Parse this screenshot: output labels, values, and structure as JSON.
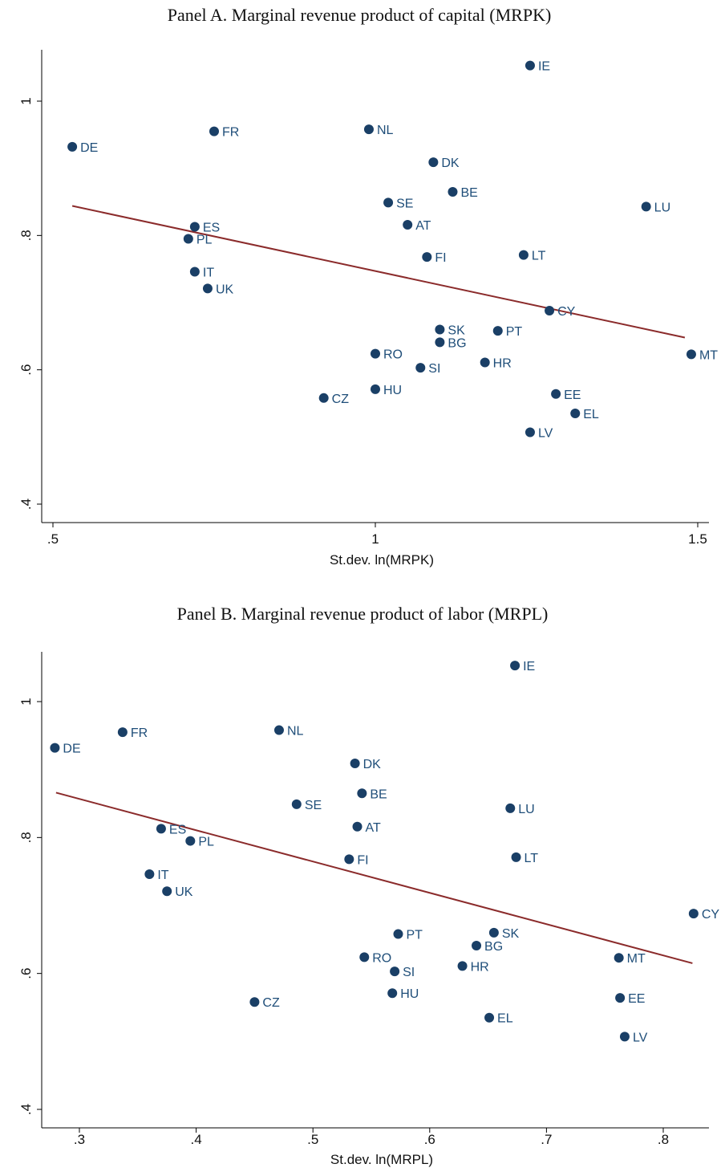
{
  "chart_data": [
    {
      "type": "scatter",
      "title": "Panel A. Marginal revenue product of capital (MRPK)",
      "xlabel": "St.dev. ln(MRPK)",
      "ylabel": "",
      "xlim": [
        0.5,
        1.5
      ],
      "ylim": [
        0.4,
        1.05
      ],
      "xticks": [
        0.5,
        1,
        1.5
      ],
      "xtick_labels": [
        ".5",
        "1",
        "1.5"
      ],
      "yticks": [
        0.4,
        0.6,
        0.8,
        1
      ],
      "ytick_labels": [
        ".4",
        ".6",
        ".8",
        "1"
      ],
      "grid": false,
      "fit_line": {
        "x": [
          0.53,
          1.48
        ],
        "y": [
          0.844,
          0.648
        ]
      },
      "points": [
        {
          "label": "IE",
          "x": 1.24,
          "y": 1.053
        },
        {
          "label": "DE",
          "x": 0.53,
          "y": 0.932
        },
        {
          "label": "FR",
          "x": 0.75,
          "y": 0.955
        },
        {
          "label": "NL",
          "x": 0.99,
          "y": 0.958
        },
        {
          "label": "DK",
          "x": 1.09,
          "y": 0.909
        },
        {
          "label": "BE",
          "x": 1.12,
          "y": 0.865
        },
        {
          "label": "SE",
          "x": 1.02,
          "y": 0.849
        },
        {
          "label": "LU",
          "x": 1.42,
          "y": 0.843
        },
        {
          "label": "ES",
          "x": 0.72,
          "y": 0.813
        },
        {
          "label": "AT",
          "x": 1.05,
          "y": 0.816
        },
        {
          "label": "PL",
          "x": 0.71,
          "y": 0.795
        },
        {
          "label": "FI",
          "x": 1.08,
          "y": 0.768
        },
        {
          "label": "LT",
          "x": 1.23,
          "y": 0.771
        },
        {
          "label": "IT",
          "x": 0.72,
          "y": 0.746
        },
        {
          "label": "UK",
          "x": 0.74,
          "y": 0.721
        },
        {
          "label": "CY",
          "x": 1.27,
          "y": 0.688
        },
        {
          "label": "SK",
          "x": 1.1,
          "y": 0.66
        },
        {
          "label": "PT",
          "x": 1.19,
          "y": 0.658
        },
        {
          "label": "BG",
          "x": 1.1,
          "y": 0.641
        },
        {
          "label": "RO",
          "x": 1.0,
          "y": 0.624
        },
        {
          "label": "MT",
          "x": 1.49,
          "y": 0.623
        },
        {
          "label": "HR",
          "x": 1.17,
          "y": 0.611
        },
        {
          "label": "SI",
          "x": 1.07,
          "y": 0.603
        },
        {
          "label": "HU",
          "x": 1.0,
          "y": 0.571
        },
        {
          "label": "EE",
          "x": 1.28,
          "y": 0.564
        },
        {
          "label": "CZ",
          "x": 0.92,
          "y": 0.558
        },
        {
          "label": "EL",
          "x": 1.31,
          "y": 0.535
        },
        {
          "label": "LV",
          "x": 1.24,
          "y": 0.507
        }
      ]
    },
    {
      "type": "scatter",
      "title": "Panel B. Marginal revenue product of labor (MRPL)",
      "xlabel": "St.dev. ln(MRPL)",
      "ylabel": "",
      "xlim": [
        0.27,
        0.84
      ],
      "ylim": [
        0.4,
        1.05
      ],
      "xticks": [
        0.3,
        0.4,
        0.5,
        0.6,
        0.7,
        0.8
      ],
      "xtick_labels": [
        ".3",
        ".4",
        ".5",
        ".6",
        ".7",
        ".8"
      ],
      "yticks": [
        0.4,
        0.6,
        0.8,
        1
      ],
      "ytick_labels": [
        ".4",
        ".6",
        ".8",
        "1"
      ],
      "grid": false,
      "fit_line": {
        "x": [
          0.28,
          0.825
        ],
        "y": [
          0.866,
          0.615
        ]
      },
      "points": [
        {
          "label": "IE",
          "x": 0.673,
          "y": 1.053
        },
        {
          "label": "DE",
          "x": 0.279,
          "y": 0.932
        },
        {
          "label": "FR",
          "x": 0.337,
          "y": 0.955
        },
        {
          "label": "NL",
          "x": 0.471,
          "y": 0.958
        },
        {
          "label": "DK",
          "x": 0.536,
          "y": 0.909
        },
        {
          "label": "BE",
          "x": 0.542,
          "y": 0.865
        },
        {
          "label": "SE",
          "x": 0.486,
          "y": 0.849
        },
        {
          "label": "LU",
          "x": 0.669,
          "y": 0.843
        },
        {
          "label": "ES",
          "x": 0.37,
          "y": 0.813
        },
        {
          "label": "AT",
          "x": 0.538,
          "y": 0.816
        },
        {
          "label": "PL",
          "x": 0.395,
          "y": 0.795
        },
        {
          "label": "FI",
          "x": 0.531,
          "y": 0.768
        },
        {
          "label": "LT",
          "x": 0.674,
          "y": 0.771
        },
        {
          "label": "IT",
          "x": 0.36,
          "y": 0.746
        },
        {
          "label": "UK",
          "x": 0.375,
          "y": 0.721
        },
        {
          "label": "CY",
          "x": 0.826,
          "y": 0.688
        },
        {
          "label": "SK",
          "x": 0.655,
          "y": 0.66
        },
        {
          "label": "PT",
          "x": 0.573,
          "y": 0.658
        },
        {
          "label": "BG",
          "x": 0.64,
          "y": 0.641
        },
        {
          "label": "RO",
          "x": 0.544,
          "y": 0.624
        },
        {
          "label": "MT",
          "x": 0.762,
          "y": 0.623
        },
        {
          "label": "HR",
          "x": 0.628,
          "y": 0.611
        },
        {
          "label": "SI",
          "x": 0.57,
          "y": 0.603
        },
        {
          "label": "HU",
          "x": 0.568,
          "y": 0.571
        },
        {
          "label": "EE",
          "x": 0.763,
          "y": 0.564
        },
        {
          "label": "CZ",
          "x": 0.45,
          "y": 0.558
        },
        {
          "label": "EL",
          "x": 0.651,
          "y": 0.535
        },
        {
          "label": "LV",
          "x": 0.767,
          "y": 0.507
        }
      ]
    }
  ]
}
